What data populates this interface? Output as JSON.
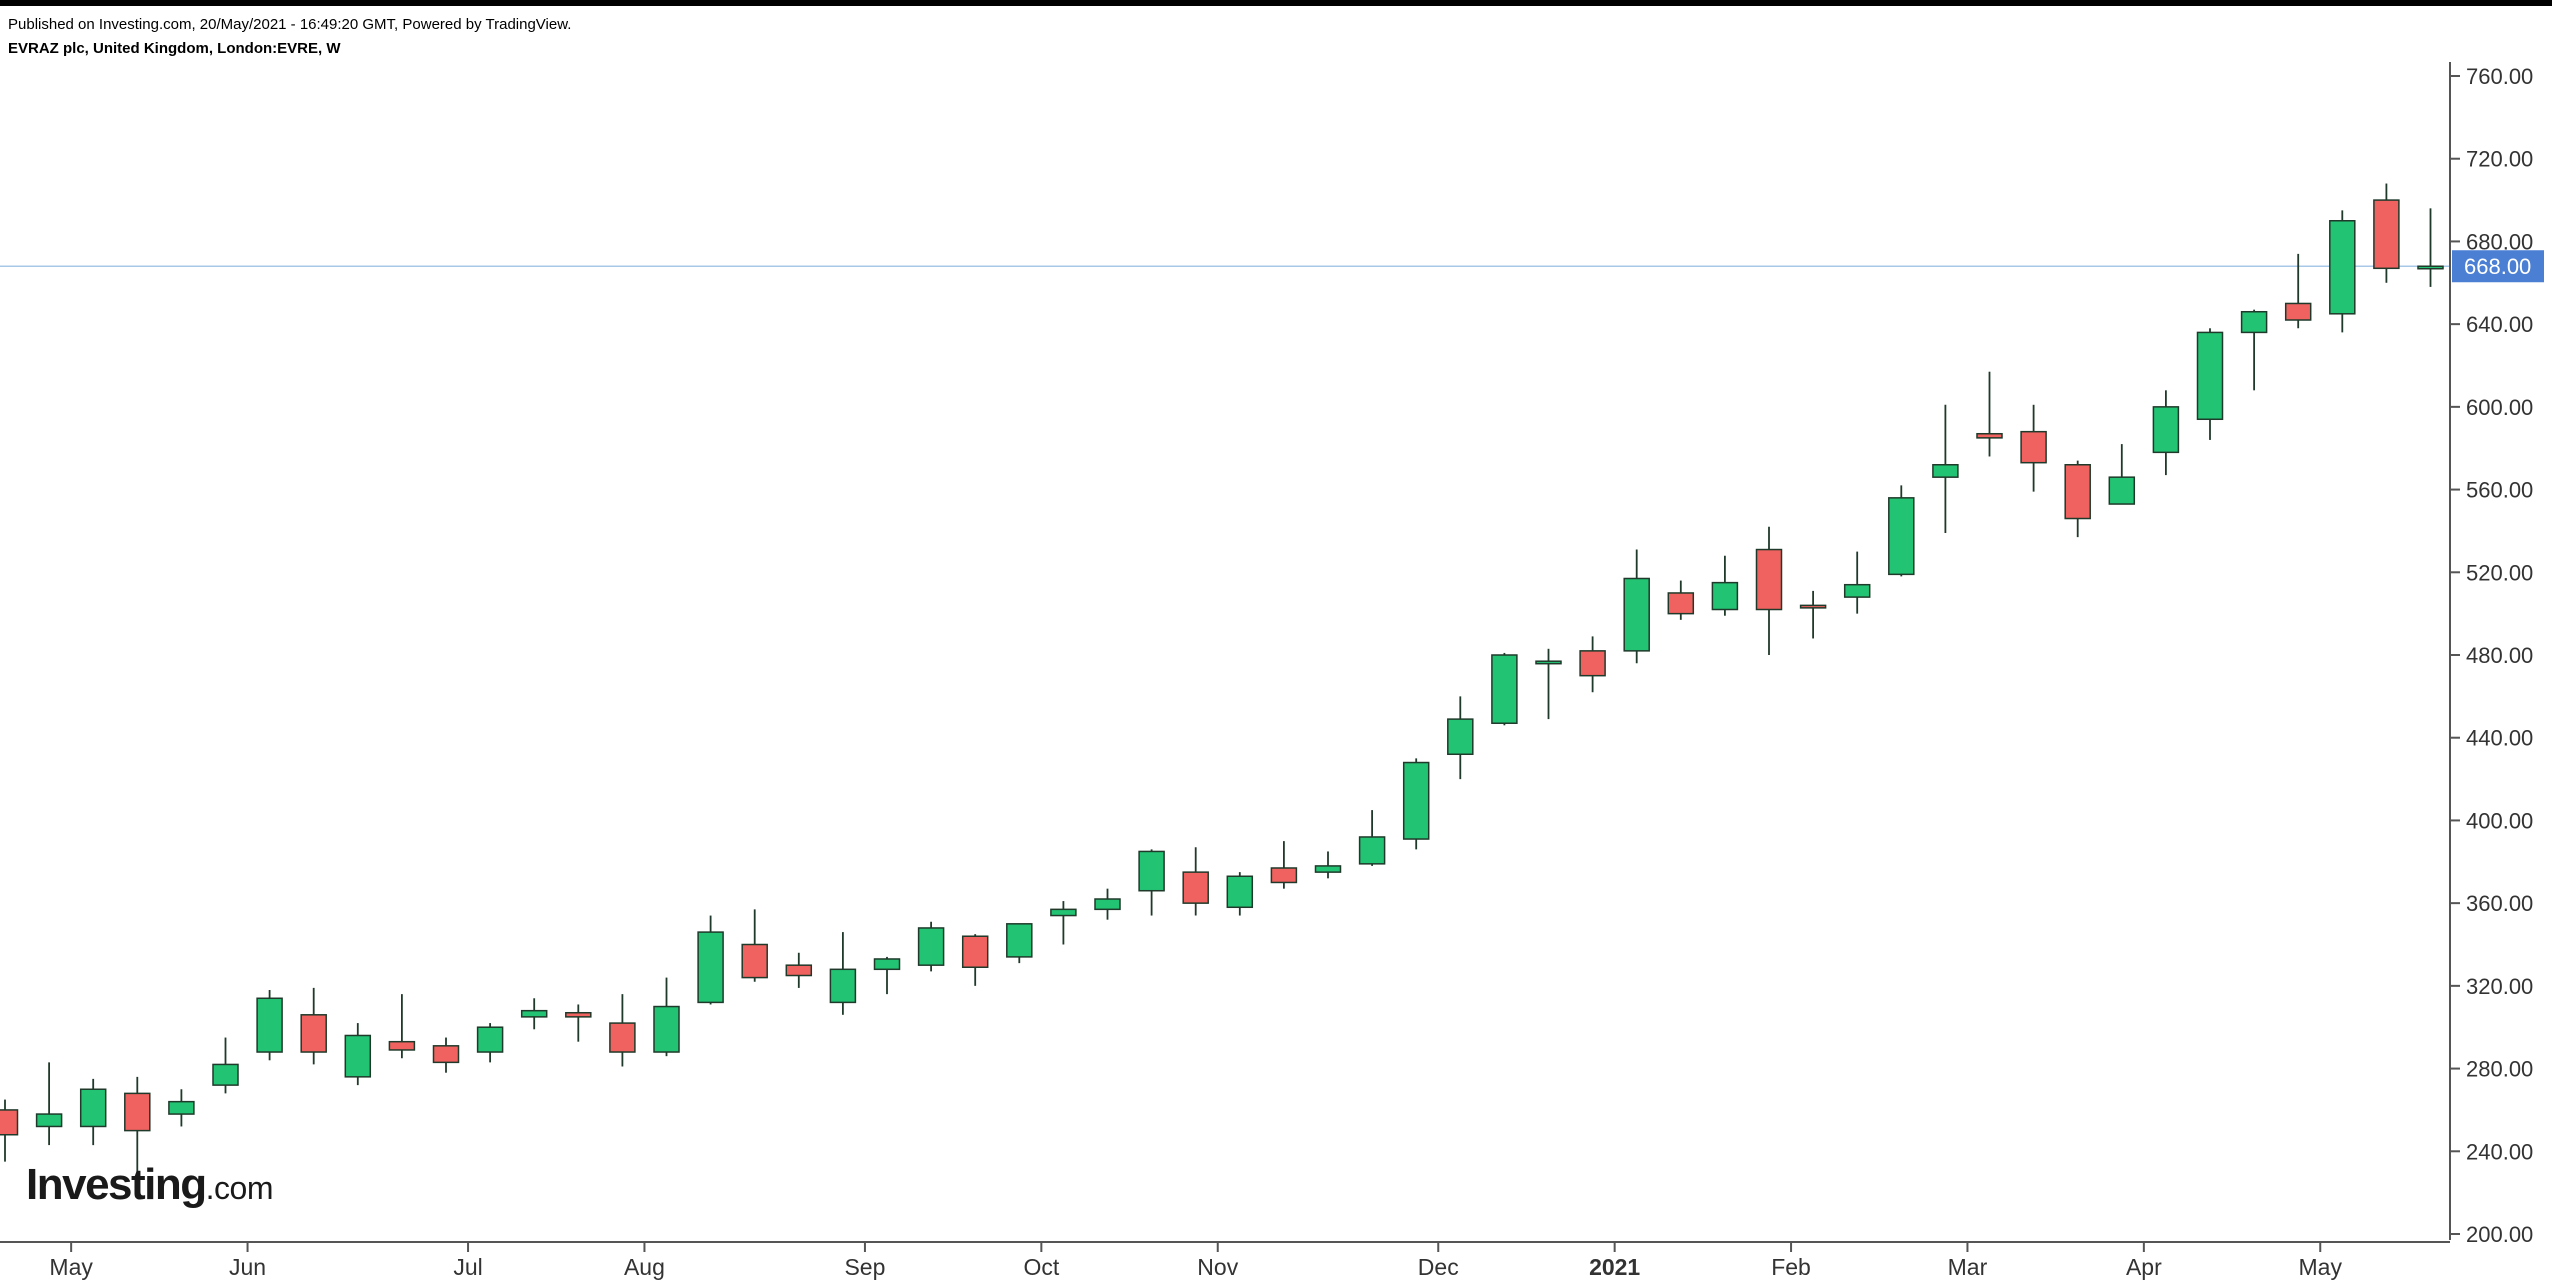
{
  "header": {
    "published": "Published on Investing.com, 20/May/2021 - 16:49:20 GMT, Powered by TradingView.",
    "symbol": "EVRAZ plc, United Kingdom, London:EVRE, W"
  },
  "logo": {
    "brand": "Investing",
    "tld": ".com"
  },
  "colors": {
    "up": "#22c373",
    "down": "#f0625f",
    "wick": "#1f3a2a",
    "axis": "#555555",
    "price_line": "#a8c8e8",
    "price_badge": "#4a7fd4"
  },
  "chart_data": {
    "type": "candlestick",
    "interval": "W",
    "ylim": [
      200,
      760
    ],
    "yticks": [
      "760.00",
      "720.00",
      "680.00",
      "640.00",
      "600.00",
      "560.00",
      "520.00",
      "480.00",
      "440.00",
      "400.00",
      "360.00",
      "320.00",
      "280.00",
      "240.00",
      "200.00"
    ],
    "ytick_values": [
      760,
      720,
      680,
      640,
      600,
      560,
      520,
      480,
      440,
      400,
      360,
      320,
      280,
      240,
      200
    ],
    "xticks": [
      {
        "label": "May",
        "index": 1.5,
        "bold": false
      },
      {
        "label": "Jun",
        "index": 5.5,
        "bold": false
      },
      {
        "label": "Jul",
        "index": 10.5,
        "bold": false
      },
      {
        "label": "Aug",
        "index": 14.5,
        "bold": false
      },
      {
        "label": "Sep",
        "index": 19.5,
        "bold": false
      },
      {
        "label": "Oct",
        "index": 23.5,
        "bold": false
      },
      {
        "label": "Nov",
        "index": 27.5,
        "bold": false
      },
      {
        "label": "Dec",
        "index": 32.5,
        "bold": false
      },
      {
        "label": "2021",
        "index": 36.5,
        "bold": true
      },
      {
        "label": "Feb",
        "index": 40.5,
        "bold": false
      },
      {
        "label": "Mar",
        "index": 44.5,
        "bold": false
      },
      {
        "label": "Apr",
        "index": 48.5,
        "bold": false
      },
      {
        "label": "May",
        "index": 52.5,
        "bold": false
      }
    ],
    "last_price": 668,
    "last_price_label": "668.00",
    "candles": [
      {
        "o": 260,
        "h": 265,
        "l": 235,
        "c": 248
      },
      {
        "o": 252,
        "h": 283,
        "l": 243,
        "c": 258
      },
      {
        "o": 252,
        "h": 275,
        "l": 243,
        "c": 270
      },
      {
        "o": 268,
        "h": 276,
        "l": 228,
        "c": 250
      },
      {
        "o": 258,
        "h": 270,
        "l": 252,
        "c": 264
      },
      {
        "o": 272,
        "h": 295,
        "l": 268,
        "c": 282
      },
      {
        "o": 288,
        "h": 318,
        "l": 284,
        "c": 314
      },
      {
        "o": 306,
        "h": 319,
        "l": 282,
        "c": 288
      },
      {
        "o": 276,
        "h": 302,
        "l": 272,
        "c": 296
      },
      {
        "o": 293,
        "h": 316,
        "l": 285,
        "c": 289
      },
      {
        "o": 291,
        "h": 295,
        "l": 278,
        "c": 283
      },
      {
        "o": 288,
        "h": 302,
        "l": 283,
        "c": 300
      },
      {
        "o": 305,
        "h": 314,
        "l": 299,
        "c": 308
      },
      {
        "o": 307,
        "h": 311,
        "l": 293,
        "c": 305
      },
      {
        "o": 302,
        "h": 316,
        "l": 281,
        "c": 288
      },
      {
        "o": 288,
        "h": 324,
        "l": 286,
        "c": 310
      },
      {
        "o": 312,
        "h": 354,
        "l": 311,
        "c": 346
      },
      {
        "o": 340,
        "h": 357,
        "l": 322,
        "c": 324
      },
      {
        "o": 330,
        "h": 336,
        "l": 319,
        "c": 325
      },
      {
        "o": 312,
        "h": 346,
        "l": 306,
        "c": 328
      },
      {
        "o": 328,
        "h": 334,
        "l": 316,
        "c": 333
      },
      {
        "o": 330,
        "h": 351,
        "l": 327,
        "c": 348
      },
      {
        "o": 344,
        "h": 345,
        "l": 320,
        "c": 329
      },
      {
        "o": 334,
        "h": 350,
        "l": 331,
        "c": 350
      },
      {
        "o": 354,
        "h": 361,
        "l": 340,
        "c": 357
      },
      {
        "o": 357,
        "h": 367,
        "l": 352,
        "c": 362
      },
      {
        "o": 366,
        "h": 386,
        "l": 354,
        "c": 385
      },
      {
        "o": 375,
        "h": 387,
        "l": 354,
        "c": 360
      },
      {
        "o": 358,
        "h": 375,
        "l": 354,
        "c": 373
      },
      {
        "o": 377,
        "h": 390,
        "l": 367,
        "c": 370
      },
      {
        "o": 375,
        "h": 385,
        "l": 372,
        "c": 378
      },
      {
        "o": 379,
        "h": 405,
        "l": 378,
        "c": 392
      },
      {
        "o": 391,
        "h": 430,
        "l": 386,
        "c": 428
      },
      {
        "o": 432,
        "h": 460,
        "l": 420,
        "c": 449
      },
      {
        "o": 447,
        "h": 481,
        "l": 446,
        "c": 480
      },
      {
        "o": 476,
        "h": 483,
        "l": 449,
        "c": 477
      },
      {
        "o": 482,
        "h": 489,
        "l": 462,
        "c": 470
      },
      {
        "o": 482,
        "h": 531,
        "l": 476,
        "c": 517
      },
      {
        "o": 510,
        "h": 516,
        "l": 497,
        "c": 500
      },
      {
        "o": 502,
        "h": 528,
        "l": 499,
        "c": 515
      },
      {
        "o": 531,
        "h": 542,
        "l": 480,
        "c": 502
      },
      {
        "o": 504,
        "h": 511,
        "l": 488,
        "c": 503
      },
      {
        "o": 508,
        "h": 530,
        "l": 500,
        "c": 514
      },
      {
        "o": 519,
        "h": 562,
        "l": 518,
        "c": 556
      },
      {
        "o": 566,
        "h": 601,
        "l": 539,
        "c": 572
      },
      {
        "o": 587,
        "h": 617,
        "l": 576,
        "c": 585
      },
      {
        "o": 588,
        "h": 601,
        "l": 559,
        "c": 573
      },
      {
        "o": 572,
        "h": 574,
        "l": 537,
        "c": 546
      },
      {
        "o": 553,
        "h": 582,
        "l": 553,
        "c": 566
      },
      {
        "o": 578,
        "h": 608,
        "l": 567,
        "c": 600
      },
      {
        "o": 594,
        "h": 638,
        "l": 584,
        "c": 636
      },
      {
        "o": 636,
        "h": 647,
        "l": 608,
        "c": 646
      },
      {
        "o": 650,
        "h": 674,
        "l": 638,
        "c": 642
      },
      {
        "o": 645,
        "h": 695,
        "l": 636,
        "c": 690
      },
      {
        "o": 700,
        "h": 708,
        "l": 660,
        "c": 667
      },
      {
        "o": 668,
        "h": 696,
        "l": 658,
        "c": 668
      }
    ]
  }
}
